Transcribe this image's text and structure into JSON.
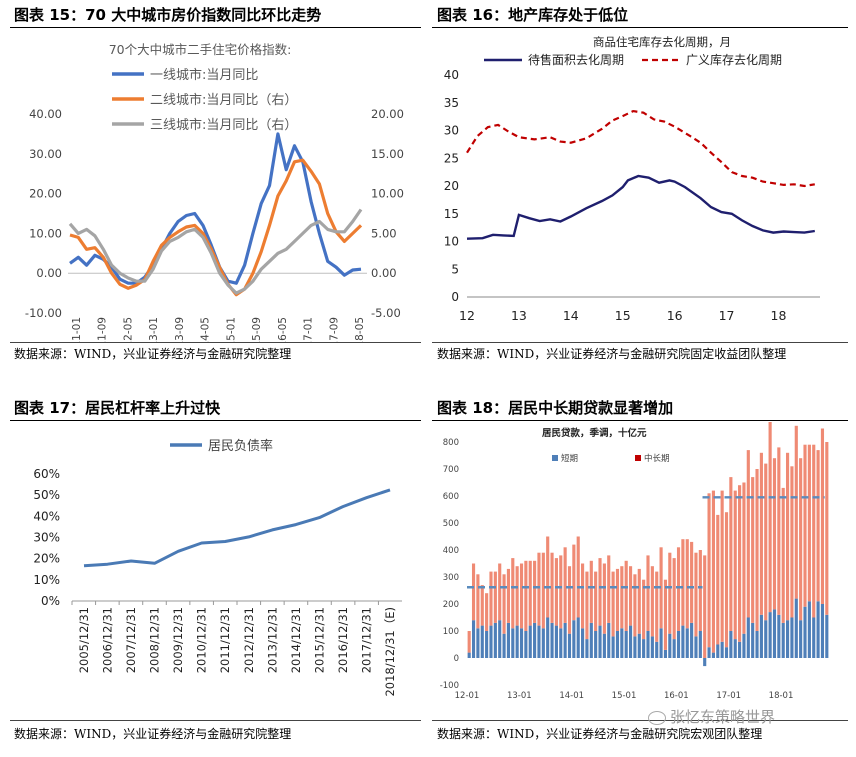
{
  "panels": {
    "p15": {
      "title": "图表 15：70 大中城市房价指数同比环比走势",
      "source": "数据来源：WIND，兴业证券经济与金融研究院整理"
    },
    "p16": {
      "title": "图表 16：地产库存处于低位",
      "source": "数据来源：WIND，兴业证券经济与金融研究院固定收益团队整理"
    },
    "p17": {
      "title": "图表 17：居民杠杆率上升过快",
      "source": "数据来源：WIND，兴业证券经济与金融研究院整理"
    },
    "p18": {
      "title": "图表 18：居民中长期贷款显著增加",
      "source": "数据来源：WIND，兴业证券经济与金融研究院宏观团队整理"
    }
  },
  "watermark": "张忆东策略世界",
  "colors": {
    "blue": "#4472c4",
    "orange": "#ed7d31",
    "gray": "#a5a5a5",
    "navy": "#1f1f6e",
    "red": "#c00000",
    "steel": "#4a7ab5",
    "barBlue": "#4f7fb8",
    "barRed": "#ef8a74",
    "dash": "#5a8bbd"
  },
  "chart_data": [
    {
      "id": "chart15",
      "type": "line",
      "title": "70个大中城市二手住宅价格指数:",
      "legend": [
        "一线城市:当月同比",
        "二线城市:当月同比（右）",
        "三线城市:当月同比（右）"
      ],
      "x_ticks": [
        "2011-01",
        "2011-09",
        "2012-05",
        "2013-01",
        "2013-09",
        "2014-05",
        "2015-01",
        "2015-09",
        "2016-05",
        "2017-01",
        "2017-09",
        "2018-05"
      ],
      "ylim_left": [
        -10,
        40
      ],
      "ylim_right": [
        -5,
        20
      ],
      "yticks_left": [
        "-10.00",
        "0.00",
        "10.00",
        "20.00",
        "30.00",
        "40.00"
      ],
      "yticks_right": [
        "-5.00",
        "0.00",
        "5.00",
        "10.00",
        "15.00",
        "20.00"
      ],
      "series": [
        {
          "name": "一线城市:当月同比",
          "axis": "left",
          "values": [
            2.5,
            4,
            2,
            4.5,
            3.5,
            1.5,
            -1.5,
            -2.5,
            -2.5,
            -1,
            2,
            6,
            10,
            13,
            14.5,
            15,
            12,
            7,
            1.5,
            -2,
            -2.5,
            2,
            10,
            17.5,
            22,
            35,
            26,
            32,
            28,
            18,
            10,
            3,
            1.5,
            -0.5,
            0.8,
            1
          ]
        },
        {
          "name": "二线城市:当月同比（右）",
          "axis": "right",
          "values": [
            4.8,
            4.5,
            3,
            3.2,
            2,
            0,
            -1.4,
            -1.9,
            -1.5,
            -0.8,
            1.5,
            3.5,
            4.5,
            5.2,
            5.8,
            6,
            5,
            3,
            0.7,
            -1.4,
            -2.7,
            -2,
            0,
            2.7,
            6,
            9.7,
            11.6,
            14,
            14.2,
            12.8,
            11.2,
            7.5,
            5.2,
            4,
            5,
            6
          ]
        },
        {
          "name": "三线城市:当月同比（右）",
          "axis": "right",
          "values": [
            6.2,
            5,
            5.5,
            4.7,
            3,
            1,
            0,
            -0.6,
            -1,
            -1,
            0.5,
            2.8,
            4,
            4.5,
            5.2,
            5.5,
            4.5,
            2.5,
            0,
            -1.5,
            -2.5,
            -2,
            -1,
            0.5,
            1.5,
            2.5,
            3,
            4,
            5,
            6,
            6.5,
            5.5,
            5.2,
            5.2,
            6.5,
            8
          ]
        }
      ]
    },
    {
      "id": "chart16",
      "type": "line",
      "title": "商品住宅库存去化周期，月",
      "legend": [
        "待售面积去化周期",
        "广义库存去化周期"
      ],
      "x_ticks": [
        "12",
        "13",
        "14",
        "15",
        "16",
        "17",
        "18"
      ],
      "ylim": [
        0,
        40
      ],
      "yticks": [
        "0",
        "5",
        "10",
        "15",
        "20",
        "25",
        "30",
        "35",
        "40"
      ],
      "x_range": [
        12,
        18.8
      ],
      "series": [
        {
          "name": "待售面积去化周期",
          "points": [
            [
              12,
              10.5
            ],
            [
              12.3,
              10.6
            ],
            [
              12.5,
              11.2
            ],
            [
              12.7,
              11.1
            ],
            [
              12.9,
              11
            ],
            [
              13,
              14.8
            ],
            [
              13.2,
              14.2
            ],
            [
              13.4,
              13.7
            ],
            [
              13.6,
              14
            ],
            [
              13.8,
              13.6
            ],
            [
              14,
              14.5
            ],
            [
              14.3,
              16
            ],
            [
              14.6,
              17.3
            ],
            [
              14.8,
              18.3
            ],
            [
              15,
              19.8
            ],
            [
              15.1,
              21
            ],
            [
              15.3,
              21.8
            ],
            [
              15.5,
              21.5
            ],
            [
              15.7,
              20.6
            ],
            [
              15.9,
              21
            ],
            [
              16,
              20.8
            ],
            [
              16.2,
              19.8
            ],
            [
              16.5,
              17.8
            ],
            [
              16.7,
              16.2
            ],
            [
              16.9,
              15.3
            ],
            [
              17.1,
              15
            ],
            [
              17.3,
              13.8
            ],
            [
              17.5,
              12.8
            ],
            [
              17.7,
              12
            ],
            [
              17.9,
              11.6
            ],
            [
              18.1,
              11.8
            ],
            [
              18.3,
              11.7
            ],
            [
              18.5,
              11.6
            ],
            [
              18.7,
              11.9
            ]
          ]
        },
        {
          "name": "广义库存去化周期",
          "points": [
            [
              12,
              26
            ],
            [
              12.2,
              29
            ],
            [
              12.4,
              30.6
            ],
            [
              12.6,
              31
            ],
            [
              12.8,
              29.8
            ],
            [
              13,
              28.8
            ],
            [
              13.3,
              28.4
            ],
            [
              13.6,
              28.8
            ],
            [
              13.8,
              28
            ],
            [
              14,
              27.8
            ],
            [
              14.3,
              28.6
            ],
            [
              14.6,
              30.3
            ],
            [
              14.8,
              31.8
            ],
            [
              15,
              32.6
            ],
            [
              15.2,
              33.5
            ],
            [
              15.4,
              33.2
            ],
            [
              15.6,
              32
            ],
            [
              15.8,
              31.6
            ],
            [
              16,
              30.7
            ],
            [
              16.3,
              29
            ],
            [
              16.5,
              27.8
            ],
            [
              16.7,
              26
            ],
            [
              16.9,
              24.3
            ],
            [
              17.1,
              22.5
            ],
            [
              17.3,
              21.8
            ],
            [
              17.5,
              21.5
            ],
            [
              17.7,
              20.8
            ],
            [
              17.9,
              20.5
            ],
            [
              18.1,
              20.2
            ],
            [
              18.3,
              20.3
            ],
            [
              18.5,
              20
            ],
            [
              18.7,
              20.3
            ]
          ]
        }
      ]
    },
    {
      "id": "chart17",
      "type": "line",
      "title": "",
      "legend": [
        "居民负债率"
      ],
      "categories": [
        "2005/12/31",
        "2006/12/31",
        "2007/12/31",
        "2008/12/31",
        "2009/12/31",
        "2010/12/31",
        "2011/12/31",
        "2012/12/31",
        "2013/12/31",
        "2014/12/31",
        "2015/12/31",
        "2016/12/31",
        "2017/12/31",
        "2018/12/31（E)"
      ],
      "values": [
        16.7,
        17.4,
        18.9,
        17.8,
        23.5,
        27.4,
        28.1,
        30.3,
        33.6,
        36.1,
        39.4,
        44.6,
        48.8,
        52.5
      ],
      "ylim": [
        0,
        60
      ],
      "yticks": [
        "0%",
        "10%",
        "20%",
        "30%",
        "40%",
        "50%",
        "60%"
      ]
    },
    {
      "id": "chart18",
      "type": "bar",
      "title": "居民贷款，季调，十亿元",
      "legend": [
        "短期",
        "中长期"
      ],
      "x_ticks": [
        "12-01",
        "13-01",
        "14-01",
        "15-01",
        "16-01",
        "17-01",
        "18-01"
      ],
      "ylim": [
        -100,
        800
      ],
      "yticks": [
        "-100",
        "0",
        "100",
        "200",
        "300",
        "400",
        "500",
        "600",
        "700",
        "800"
      ],
      "averages": [
        {
          "label": "",
          "from_month": 0,
          "to_month": 54,
          "value": 262
        },
        {
          "label": "",
          "from_month": 54,
          "to_month": 82,
          "value": 595
        }
      ],
      "series": [
        {
          "name": "短期",
          "values": [
            20,
            140,
            110,
            120,
            100,
            120,
            130,
            140,
            90,
            130,
            110,
            120,
            110,
            100,
            120,
            130,
            120,
            110,
            150,
            130,
            120,
            110,
            130,
            90,
            140,
            150,
            110,
            70,
            130,
            100,
            120,
            90,
            130,
            80,
            100,
            110,
            100,
            120,
            80,
            90,
            70,
            100,
            80,
            60,
            110,
            30,
            90,
            70,
            100,
            120,
            110,
            130,
            80,
            100,
            -30,
            40,
            20,
            50,
            60,
            40,
            100,
            70,
            60,
            90,
            150,
            130,
            100,
            160,
            140,
            170,
            180,
            160,
            130,
            140,
            150,
            220,
            140,
            190,
            210,
            150,
            210,
            200,
            160
          ]
        },
        {
          "name": "中长期",
          "values": [
            80,
            210,
            200,
            150,
            140,
            200,
            190,
            210,
            220,
            200,
            260,
            220,
            240,
            260,
            240,
            230,
            270,
            280,
            300,
            260,
            250,
            270,
            280,
            250,
            280,
            300,
            240,
            250,
            230,
            220,
            250,
            260,
            250,
            240,
            230,
            230,
            260,
            220,
            230,
            240,
            220,
            280,
            260,
            260,
            300,
            260,
            300,
            300,
            310,
            320,
            330,
            300,
            310,
            300,
            380,
            570,
            600,
            480,
            560,
            500,
            570,
            550,
            580,
            560,
            620,
            540,
            600,
            600,
            580,
            740,
            560,
            620,
            500,
            620,
            560,
            640,
            600,
            600,
            580,
            640,
            560,
            650,
            640
          ]
        }
      ]
    }
  ]
}
